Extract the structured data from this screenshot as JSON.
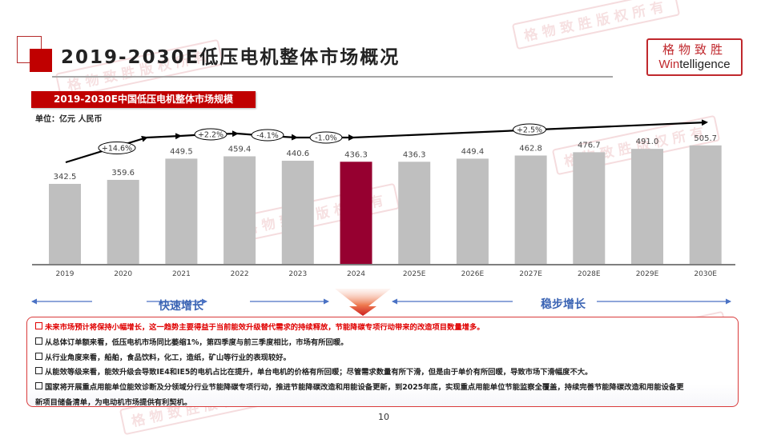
{
  "header": {
    "title": "2019-2030E低压电机整体市场概况",
    "logo_cn": "格物致胜",
    "logo_en_prefix": "Win",
    "logo_en_suffix": "telligence"
  },
  "chart_banner": "2019-2030E中国低压电机整体市场规模",
  "unit_label": "单位：亿元 人民币",
  "colors": {
    "accent_red": "#c00000",
    "bar_default": "#bfbfbf",
    "bar_highlight": "#960030",
    "phase_text": "#3b64b4",
    "highlight_text": "#e00000"
  },
  "chart_data": {
    "type": "bar",
    "title": "2019-2030E中国低压电机整体市场规模",
    "ylabel": "单位：亿元 人民币",
    "xlabel": "",
    "categories": [
      "2019",
      "2020",
      "2021",
      "2022",
      "2023",
      "2024",
      "2025E",
      "2026E",
      "2027E",
      "2028E",
      "2029E",
      "2030E"
    ],
    "values": [
      342.5,
      359.6,
      449.5,
      459.4,
      440.6,
      436.3,
      436.3,
      449.4,
      462.8,
      476.7,
      491.0,
      505.7
    ],
    "value_labels": [
      "342.5",
      "359.6",
      "449.5",
      "459.4",
      "440.6",
      "436.3",
      "436.3",
      "449.4",
      "462.8",
      "476.7",
      "491.0",
      "505.7"
    ],
    "highlight_category": "2024",
    "growth_annotations": [
      {
        "label": "+14.6%",
        "span": "2019-2021"
      },
      {
        "label": "+2.2%",
        "span": "2021-2022"
      },
      {
        "label": "-4.1%",
        "span": "2022-2023"
      },
      {
        "label": "-1.0%",
        "span": "2023-2024"
      },
      {
        "label": "+2.5%",
        "span": "2024-2030E"
      }
    ],
    "grid": false,
    "legend": "none"
  },
  "phases": {
    "left": "快速增长",
    "right": "稳步增长"
  },
  "notes": [
    {
      "text": "未来市场预计将保持小幅增长，这一趋势主要得益于当前能效升级替代需求的持续释放，节能降碳专项行动带来的改造项目数量增多。",
      "highlight": true
    },
    {
      "text": "从总体订单额来看，低压电机市场同比萎缩1%，第四季度与前三季度相比，市场有所回暖。",
      "highlight": false
    },
    {
      "text": "从行业角度来看，船舶，食品饮料，化工，造纸，矿山等行业的表现较好。",
      "highlight": false
    },
    {
      "text": "从能效等级来看，能效升级会导致IE4和IE5的电机占比在提升，单台电机的价格有所回暖；尽管需求数量有所下滑，但是由于单价有所回暖，导致市场下滑幅度不大。",
      "highlight": false
    },
    {
      "text": "国家将开展重点用能单位能效诊断及分领域分行业节能降碳专项行动，推进节能降碳改造和用能设备更新，到2025年底，实现重点用能单位节能监察全覆盖，持续完善节能降碳改造和用能设备更",
      "highlight": false
    },
    {
      "text": "新项目储备清单，为电动机市场提供有利契机。",
      "highlight": false,
      "continuation": true
    }
  ],
  "watermark_text": "格物致胜版权所有",
  "page_number": "10"
}
